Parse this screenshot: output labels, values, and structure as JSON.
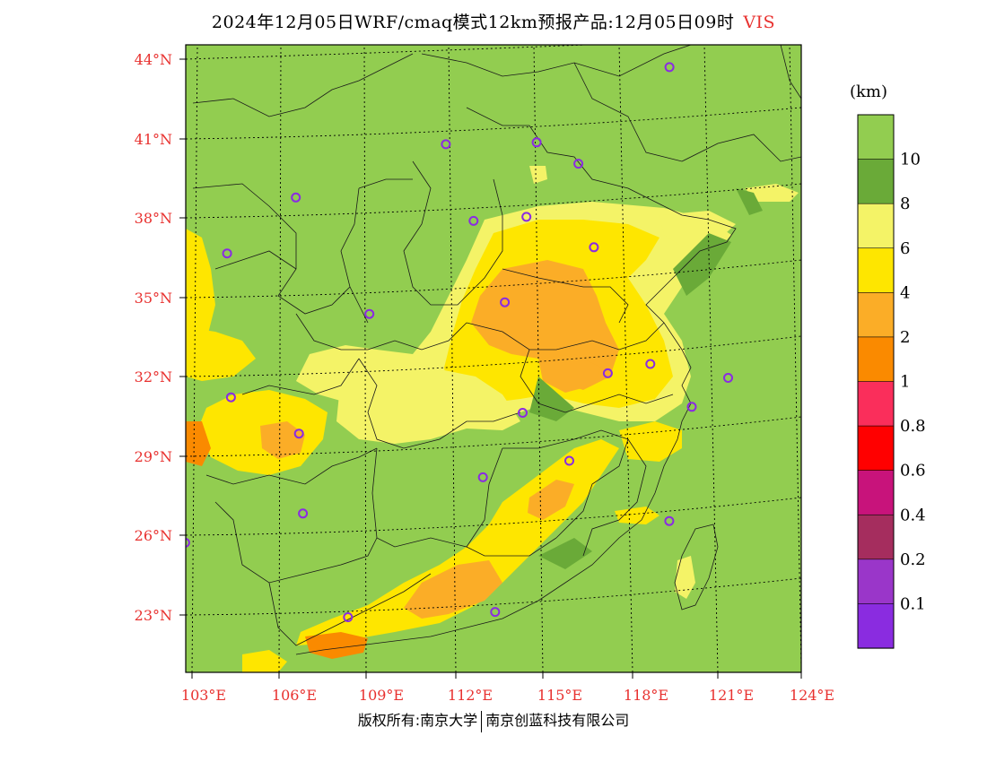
{
  "title": {
    "main": "2024年12月05日WRF/cmaq模式12km预报产品:12月05日09时",
    "variable": "VIS"
  },
  "axes": {
    "lat_labels": [
      "44°N",
      "41°N",
      "38°N",
      "35°N",
      "32°N",
      "29°N",
      "26°N",
      "23°N"
    ],
    "lon_labels": [
      "103°E",
      "106°E",
      "109°E",
      "112°E",
      "115°E",
      "118°E",
      "121°E",
      "124°E"
    ]
  },
  "legend": {
    "unit": "(km)",
    "levels": [
      "10",
      "8",
      "6",
      "4",
      "2",
      "1",
      "0.8",
      "0.6",
      "0.4",
      "0.2",
      "0.1"
    ],
    "colors": [
      "#92cd50",
      "#6aaa38",
      "#f4f367",
      "#fee600",
      "#fbad27",
      "#fa8a00",
      "#fa2e5b",
      "#ff0000",
      "#c8137b",
      "#a52d5e",
      "#9a36c9",
      "#8a2ce0"
    ]
  },
  "map_colors": {
    "background": "#92cd50",
    "haze_light": "#f4f367",
    "haze_mid": "#fee600",
    "haze_heavy": "#fbad27",
    "haze_severe": "#fa8a00",
    "boundary": "#1a1a1a",
    "station": "#8a2be2",
    "gridline": "#000000"
  },
  "stations": [
    {
      "lon": 119.8,
      "lat": 43.2
    },
    {
      "lon": 111.6,
      "lat": 40.8
    },
    {
      "lon": 114.9,
      "lat": 40.8
    },
    {
      "lon": 116.4,
      "lat": 39.9
    },
    {
      "lon": 106.2,
      "lat": 38.5
    },
    {
      "lon": 112.6,
      "lat": 37.9
    },
    {
      "lon": 114.5,
      "lat": 38.0
    },
    {
      "lon": 116.9,
      "lat": 36.7
    },
    {
      "lon": 103.8,
      "lat": 36.1
    },
    {
      "lon": 113.7,
      "lat": 34.8
    },
    {
      "lon": 108.9,
      "lat": 34.3
    },
    {
      "lon": 117.3,
      "lat": 31.9
    },
    {
      "lon": 118.8,
      "lat": 32.1
    },
    {
      "lon": 121.5,
      "lat": 31.2
    },
    {
      "lon": 120.2,
      "lat": 30.3
    },
    {
      "lon": 114.3,
      "lat": 30.6
    },
    {
      "lon": 104.1,
      "lat": 30.7
    },
    {
      "lon": 106.5,
      "lat": 29.6
    },
    {
      "lon": 115.9,
      "lat": 28.7
    },
    {
      "lon": 112.9,
      "lat": 28.2
    },
    {
      "lon": 119.3,
      "lat": 26.1
    },
    {
      "lon": 106.7,
      "lat": 26.6
    },
    {
      "lon": 102.7,
      "lat": 25.0
    },
    {
      "lon": 108.3,
      "lat": 22.8
    },
    {
      "lon": 113.3,
      "lat": 23.1
    }
  ],
  "footer": {
    "left": "版权所有:南京大学",
    "right": "南京创蓝科技有限公司"
  }
}
